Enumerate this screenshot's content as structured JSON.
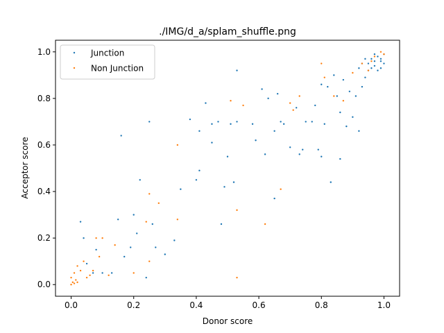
{
  "chart_data": {
    "type": "scatter",
    "title": "./IMG/d_a/splam_shuffle.png",
    "xlabel": "Donor score",
    "ylabel": "Acceptor score",
    "xlim": [
      -0.05,
      1.05
    ],
    "ylim": [
      -0.05,
      1.05
    ],
    "xticks": [
      "0.0",
      "0.2",
      "0.4",
      "0.6",
      "0.8",
      "1.0"
    ],
    "yticks": [
      "0.0",
      "0.2",
      "0.4",
      "0.6",
      "0.8",
      "1.0"
    ],
    "legend_position": "upper-left",
    "grid": false,
    "series": [
      {
        "name": "Junction",
        "color": "#1f77b4",
        "points": [
          [
            0.03,
            0.27
          ],
          [
            0.04,
            0.2
          ],
          [
            0.05,
            0.09
          ],
          [
            0.07,
            0.05
          ],
          [
            0.08,
            0.15
          ],
          [
            0.1,
            0.05
          ],
          [
            0.13,
            0.05
          ],
          [
            0.15,
            0.28
          ],
          [
            0.16,
            0.64
          ],
          [
            0.17,
            0.12
          ],
          [
            0.19,
            0.16
          ],
          [
            0.2,
            0.3
          ],
          [
            0.21,
            0.22
          ],
          [
            0.22,
            0.45
          ],
          [
            0.24,
            0.03
          ],
          [
            0.25,
            0.7
          ],
          [
            0.26,
            0.26
          ],
          [
            0.27,
            0.16
          ],
          [
            0.3,
            0.13
          ],
          [
            0.33,
            0.19
          ],
          [
            0.35,
            0.41
          ],
          [
            0.38,
            0.71
          ],
          [
            0.4,
            0.45
          ],
          [
            0.41,
            0.66
          ],
          [
            0.41,
            0.49
          ],
          [
            0.43,
            0.78
          ],
          [
            0.45,
            0.69
          ],
          [
            0.45,
            0.61
          ],
          [
            0.47,
            0.7
          ],
          [
            0.48,
            0.26
          ],
          [
            0.49,
            0.42
          ],
          [
            0.5,
            0.55
          ],
          [
            0.51,
            0.69
          ],
          [
            0.52,
            0.44
          ],
          [
            0.53,
            0.7
          ],
          [
            0.53,
            0.92
          ],
          [
            0.58,
            0.69
          ],
          [
            0.59,
            0.62
          ],
          [
            0.61,
            0.84
          ],
          [
            0.62,
            0.56
          ],
          [
            0.63,
            0.8
          ],
          [
            0.65,
            0.66
          ],
          [
            0.65,
            0.37
          ],
          [
            0.66,
            0.82
          ],
          [
            0.67,
            0.7
          ],
          [
            0.68,
            0.69
          ],
          [
            0.7,
            0.59
          ],
          [
            0.72,
            0.76
          ],
          [
            0.73,
            0.56
          ],
          [
            0.74,
            0.58
          ],
          [
            0.75,
            0.7
          ],
          [
            0.77,
            0.7
          ],
          [
            0.78,
            0.77
          ],
          [
            0.79,
            0.58
          ],
          [
            0.8,
            0.86
          ],
          [
            0.8,
            0.55
          ],
          [
            0.81,
            0.69
          ],
          [
            0.82,
            0.85
          ],
          [
            0.83,
            0.44
          ],
          [
            0.84,
            0.9
          ],
          [
            0.85,
            0.81
          ],
          [
            0.86,
            0.54
          ],
          [
            0.86,
            0.74
          ],
          [
            0.87,
            0.88
          ],
          [
            0.88,
            0.68
          ],
          [
            0.89,
            0.83
          ],
          [
            0.9,
            0.72
          ],
          [
            0.91,
            0.81
          ],
          [
            0.92,
            0.66
          ],
          [
            0.92,
            0.93
          ],
          [
            0.93,
            0.85
          ],
          [
            0.94,
            0.89
          ],
          [
            0.95,
            0.95
          ],
          [
            0.96,
            0.97
          ],
          [
            0.97,
            0.94
          ],
          [
            0.98,
            0.98
          ],
          [
            0.99,
            0.96
          ],
          [
            1.0,
            0.99
          ],
          [
            0.97,
            0.99
          ],
          [
            0.96,
            0.93
          ],
          [
            0.98,
            0.92
          ],
          [
            0.99,
            0.97
          ],
          [
            1.0,
            0.95
          ],
          [
            0.95,
            0.92
          ],
          [
            0.94,
            0.97
          ],
          [
            0.93,
            0.95
          ],
          [
            0.97,
            0.96
          ],
          [
            0.99,
            0.93
          ]
        ]
      },
      {
        "name": "Non Junction",
        "color": "#ff7f0e",
        "points": [
          [
            0.0,
            0.0
          ],
          [
            0.005,
            0.01
          ],
          [
            0.01,
            0.005
          ],
          [
            0.015,
            0.02
          ],
          [
            0.02,
            0.01
          ],
          [
            0.0,
            0.03
          ],
          [
            0.01,
            0.05
          ],
          [
            0.02,
            0.08
          ],
          [
            0.03,
            0.06
          ],
          [
            0.04,
            0.1
          ],
          [
            0.05,
            0.03
          ],
          [
            0.06,
            0.04
          ],
          [
            0.07,
            0.06
          ],
          [
            0.08,
            0.2
          ],
          [
            0.09,
            0.12
          ],
          [
            0.1,
            0.2
          ],
          [
            0.12,
            0.04
          ],
          [
            0.14,
            0.17
          ],
          [
            0.2,
            0.05
          ],
          [
            0.24,
            0.27
          ],
          [
            0.25,
            0.39
          ],
          [
            0.25,
            0.1
          ],
          [
            0.28,
            0.35
          ],
          [
            0.34,
            0.6
          ],
          [
            0.34,
            0.28
          ],
          [
            0.51,
            0.79
          ],
          [
            0.53,
            0.32
          ],
          [
            0.53,
            0.03
          ],
          [
            0.55,
            0.77
          ],
          [
            0.62,
            0.26
          ],
          [
            0.67,
            0.41
          ],
          [
            0.7,
            0.78
          ],
          [
            0.71,
            0.75
          ],
          [
            0.73,
            0.81
          ],
          [
            0.8,
            0.95
          ],
          [
            0.81,
            0.89
          ],
          [
            0.84,
            0.81
          ],
          [
            0.87,
            0.79
          ],
          [
            0.9,
            0.91
          ],
          [
            0.93,
            0.95
          ],
          [
            0.95,
            0.92
          ],
          [
            0.97,
            0.98
          ],
          [
            0.99,
            1.0
          ],
          [
            1.0,
            0.99
          ],
          [
            0.96,
            0.96
          ]
        ]
      }
    ]
  }
}
